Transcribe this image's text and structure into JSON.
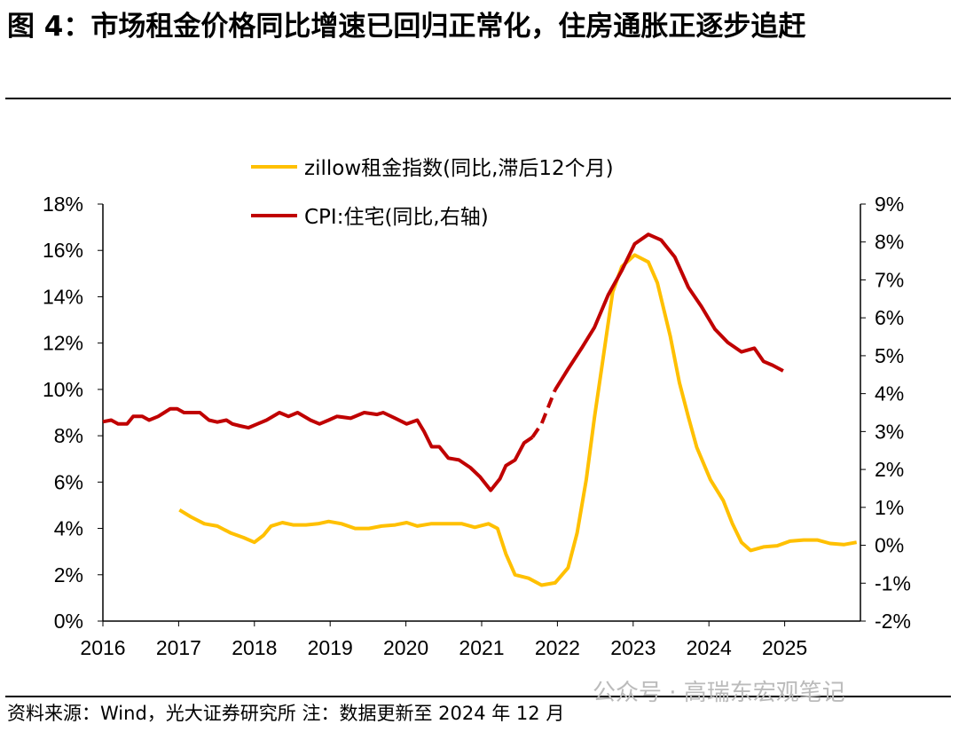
{
  "title": "图 4：市场租金价格同比增速已回归正常化，住房通胀正逐步追赶",
  "source": "资料来源：Wind，光大证券研究所  注：数据更新至 2024 年 12 月",
  "watermark": "公众号 · 高瑞东宏观笔记",
  "chart_data": {
    "type": "line",
    "x_ticks": [
      "2016",
      "2017",
      "2018",
      "2019",
      "2020",
      "2021",
      "2022",
      "2023",
      "2024",
      "2025"
    ],
    "xlim": [
      2016,
      2026
    ],
    "y_left": {
      "ticks": [
        "0%",
        "2%",
        "4%",
        "6%",
        "8%",
        "10%",
        "12%",
        "14%",
        "16%",
        "18%"
      ],
      "lim": [
        0,
        18
      ]
    },
    "y_right": {
      "ticks": [
        "-2%",
        "-1%",
        "0%",
        "1%",
        "2%",
        "3%",
        "4%",
        "5%",
        "6%",
        "7%",
        "8%",
        "9%"
      ],
      "lim": [
        -2,
        9
      ]
    },
    "grid": false,
    "legend_placement": "top-center",
    "series": [
      {
        "name": "zillow租金指数(同比,滞后12个月)",
        "axis": "left",
        "color": "#FFC000",
        "x": [
          2017.01,
          2017.16,
          2017.34,
          2017.51,
          2017.69,
          2017.86,
          2018.0,
          2018.12,
          2018.22,
          2018.37,
          2018.51,
          2018.68,
          2018.84,
          2018.98,
          2019.15,
          2019.33,
          2019.51,
          2019.68,
          2019.86,
          2020.01,
          2020.15,
          2020.33,
          2020.5,
          2020.74,
          2020.91,
          2021.09,
          2021.21,
          2021.32,
          2021.44,
          2021.62,
          2021.79,
          2021.97,
          2022.14,
          2022.26,
          2022.38,
          2022.49,
          2022.61,
          2022.73,
          2022.85,
          2023.02,
          2023.2,
          2023.32,
          2023.49,
          2023.61,
          2023.73,
          2023.84,
          2024.02,
          2024.19,
          2024.31,
          2024.43,
          2024.55,
          2024.72,
          2024.9,
          2025.07,
          2025.25,
          2025.43,
          2025.6,
          2025.78,
          2025.95
        ],
        "y": [
          4.8,
          4.5,
          4.2,
          4.1,
          3.8,
          3.6,
          3.4,
          3.7,
          4.1,
          4.25,
          4.15,
          4.15,
          4.2,
          4.3,
          4.2,
          4.0,
          4.0,
          4.1,
          4.15,
          4.25,
          4.1,
          4.2,
          4.2,
          4.2,
          4.05,
          4.2,
          4.0,
          2.9,
          2.0,
          1.85,
          1.55,
          1.65,
          2.3,
          3.8,
          6.1,
          8.8,
          11.5,
          14.2,
          15.3,
          15.8,
          15.5,
          14.6,
          12.3,
          10.3,
          8.8,
          7.5,
          6.1,
          5.2,
          4.2,
          3.4,
          3.05,
          3.2,
          3.25,
          3.45,
          3.5,
          3.5,
          3.35,
          3.3,
          3.4
        ]
      },
      {
        "name": "CPI:住宅(同比,右轴)",
        "axis": "right",
        "color": "#C00000",
        "dashed_range": [
          2021.67,
          2021.97
        ],
        "x": [
          2016.0,
          2016.11,
          2016.2,
          2016.32,
          2016.4,
          2016.52,
          2016.61,
          2016.73,
          2016.81,
          2016.89,
          2016.98,
          2017.07,
          2017.28,
          2017.4,
          2017.51,
          2017.63,
          2017.71,
          2017.81,
          2017.92,
          2018.04,
          2018.16,
          2018.33,
          2018.45,
          2018.57,
          2018.74,
          2018.86,
          2018.98,
          2019.09,
          2019.27,
          2019.45,
          2019.62,
          2019.7,
          2019.86,
          2020.01,
          2020.15,
          2020.24,
          2020.34,
          2020.44,
          2020.56,
          2020.7,
          2020.85,
          2020.98,
          2021.12,
          2021.24,
          2021.32,
          2021.44,
          2021.56,
          2021.67,
          2021.79,
          2021.97,
          2022.14,
          2022.32,
          2022.49,
          2022.67,
          2022.85,
          2023.02,
          2023.2,
          2023.37,
          2023.55,
          2023.73,
          2023.9,
          2024.08,
          2024.25,
          2024.43,
          2024.6,
          2024.72,
          2024.84,
          2024.98
        ],
        "y": [
          3.26,
          3.3,
          3.2,
          3.2,
          3.4,
          3.4,
          3.3,
          3.4,
          3.5,
          3.6,
          3.6,
          3.5,
          3.5,
          3.3,
          3.25,
          3.3,
          3.2,
          3.15,
          3.1,
          3.2,
          3.3,
          3.5,
          3.4,
          3.5,
          3.3,
          3.2,
          3.3,
          3.4,
          3.35,
          3.5,
          3.45,
          3.5,
          3.35,
          3.2,
          3.3,
          3.0,
          2.6,
          2.6,
          2.3,
          2.25,
          2.05,
          1.8,
          1.45,
          1.75,
          2.1,
          2.25,
          2.7,
          2.85,
          3.2,
          4.1,
          4.65,
          5.2,
          5.75,
          6.6,
          7.25,
          7.95,
          8.2,
          8.05,
          7.6,
          6.8,
          6.3,
          5.7,
          5.35,
          5.1,
          5.2,
          4.85,
          4.75,
          4.6
        ]
      }
    ]
  }
}
